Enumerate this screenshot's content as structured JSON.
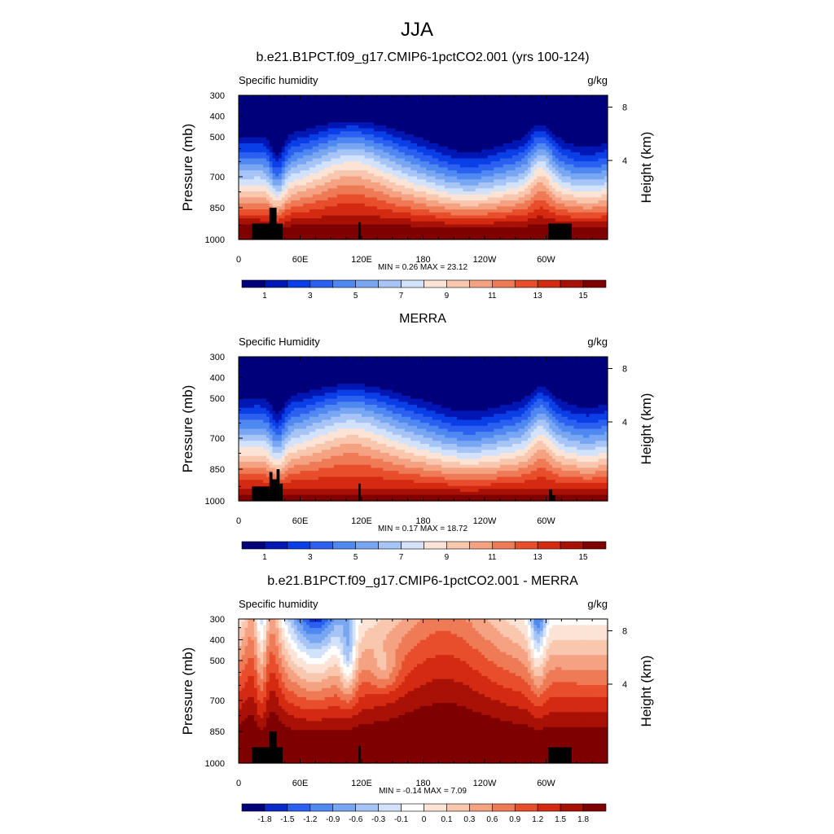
{
  "figure_title": "JJA",
  "palettes": {
    "abs": [
      "#00007a",
      "#0017b4",
      "#0a3ee6",
      "#2b60f0",
      "#5088f2",
      "#78a6f2",
      "#a6c4f6",
      "#d2e2fa",
      "#fbe4d6",
      "#f9c6ae",
      "#f4a282",
      "#ef7a56",
      "#e94e2c",
      "#d42a12",
      "#a81106",
      "#7e0000"
    ],
    "diff": [
      "#00007a",
      "#0a2ac8",
      "#2b60f0",
      "#5088f2",
      "#78a6f2",
      "#a6c4f6",
      "#d2e2fa",
      "#fefefe",
      "#fbe4d6",
      "#f9c6ae",
      "#f4a282",
      "#ef7a56",
      "#e94e2c",
      "#d42a12",
      "#a81106",
      "#7e0000"
    ]
  },
  "chart_data": [
    {
      "type": "heatmap",
      "title": "b.e21.B1PCT.f09_g17.CMIP6-1pctCO2.001 (yrs 100-124)",
      "left_label": "Specific humidity",
      "right_label": "g/kg",
      "ylabel": "Pressure (mb)",
      "y2label": "Height (km)",
      "x_ticks": [
        "0",
        "60E",
        "120E",
        "180",
        "120W",
        "60W"
      ],
      "y_ticks": [
        "300",
        "400",
        "500",
        "700",
        "850",
        "1000"
      ],
      "y2_ticks": [
        "8",
        "4"
      ],
      "stats": "MIN =   0.26  MAX =  23.12",
      "colorbar_labels": [
        "1",
        "3",
        "5",
        "7",
        "9",
        "11",
        "13",
        "15"
      ],
      "palette": "abs",
      "field": "model"
    },
    {
      "type": "heatmap",
      "title": "MERRA",
      "left_label": "Specific Humidity",
      "right_label": "g/kg",
      "ylabel": "Pressure (mb)",
      "y2label": "Height (km)",
      "x_ticks": [
        "0",
        "60E",
        "120E",
        "180",
        "120W",
        "60W"
      ],
      "y_ticks": [
        "300",
        "400",
        "500",
        "700",
        "850",
        "1000"
      ],
      "y2_ticks": [
        "8",
        "4"
      ],
      "stats": "MIN =   0.17  MAX =  18.72",
      "colorbar_labels": [
        "1",
        "3",
        "5",
        "7",
        "9",
        "11",
        "13",
        "15"
      ],
      "palette": "abs",
      "field": "obs"
    },
    {
      "type": "heatmap",
      "title": "b.e21.B1PCT.f09_g17.CMIP6-1pctCO2.001 - MERRA",
      "left_label": "Specific humidity",
      "right_label": "g/kg",
      "ylabel": "Pressure (mb)",
      "y2label": "Height (km)",
      "x_ticks": [
        "0",
        "60E",
        "120E",
        "180",
        "120W",
        "60W"
      ],
      "y_ticks": [
        "300",
        "400",
        "500",
        "700",
        "850",
        "1000"
      ],
      "y2_ticks": [
        "8",
        "4"
      ],
      "stats": "MIN =  -0.14  MAX =   7.09",
      "colorbar_labels": [
        "-1.8",
        "-1.5",
        "-1.2",
        "-0.9",
        "-0.6",
        "-0.3",
        "-0.1",
        "0",
        "0.1",
        "0.3",
        "0.6",
        "0.9",
        "1.2",
        "1.5",
        "1.8"
      ],
      "palette": "diff",
      "field": "diff"
    }
  ]
}
